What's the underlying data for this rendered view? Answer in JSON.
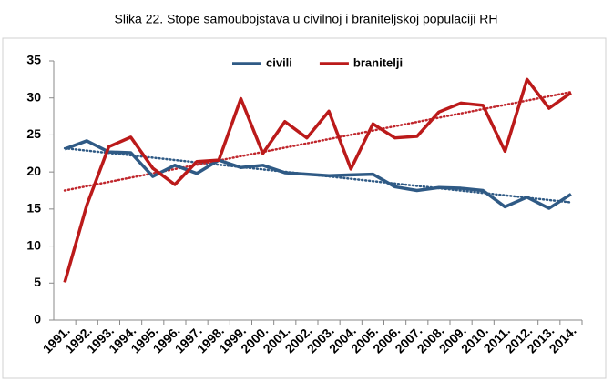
{
  "chart_data": {
    "type": "line",
    "title": "Slika 22. Stope samoubojstava u civilnoj i braniteljskoj populaciji RH",
    "categories": [
      "1991.",
      "1992.",
      "1993.",
      "1994.",
      "1995.",
      "1996.",
      "1997.",
      "1998.",
      "1999.",
      "2000.",
      "2001.",
      "2002.",
      "2003.",
      "2004.",
      "2005.",
      "2006.",
      "2007.",
      "2008.",
      "2009.",
      "2010.",
      "2011.",
      "2012.",
      "2013.",
      "2014."
    ],
    "series": [
      {
        "name": "civili",
        "color": "#2f5a85",
        "values": [
          23.1,
          24.2,
          22.7,
          22.6,
          19.4,
          20.9,
          19.8,
          21.6,
          20.6,
          20.9,
          19.9,
          19.7,
          19.5,
          19.6,
          19.7,
          18.0,
          17.5,
          17.9,
          17.8,
          17.5,
          15.3,
          16.6,
          15.1,
          17.0
        ]
      },
      {
        "name": "branitelji",
        "color": "#bb1a1a",
        "values": [
          5.1,
          15.5,
          23.4,
          24.7,
          20.5,
          18.3,
          21.4,
          21.6,
          29.9,
          22.5,
          26.8,
          24.6,
          28.2,
          20.4,
          26.5,
          24.6,
          24.8,
          28.1,
          29.3,
          29.0,
          22.8,
          32.5,
          28.6,
          30.7
        ]
      }
    ],
    "trendlines": [
      {
        "color": "#2f5a85",
        "values": [
          23.2,
          15.9
        ]
      },
      {
        "color": "#c0272d",
        "values": [
          17.5,
          30.8
        ]
      }
    ],
    "ylim": [
      0,
      35
    ],
    "yticks": [
      0,
      5,
      10,
      15,
      20,
      25,
      30,
      35
    ],
    "grid": false,
    "legend": "top"
  }
}
